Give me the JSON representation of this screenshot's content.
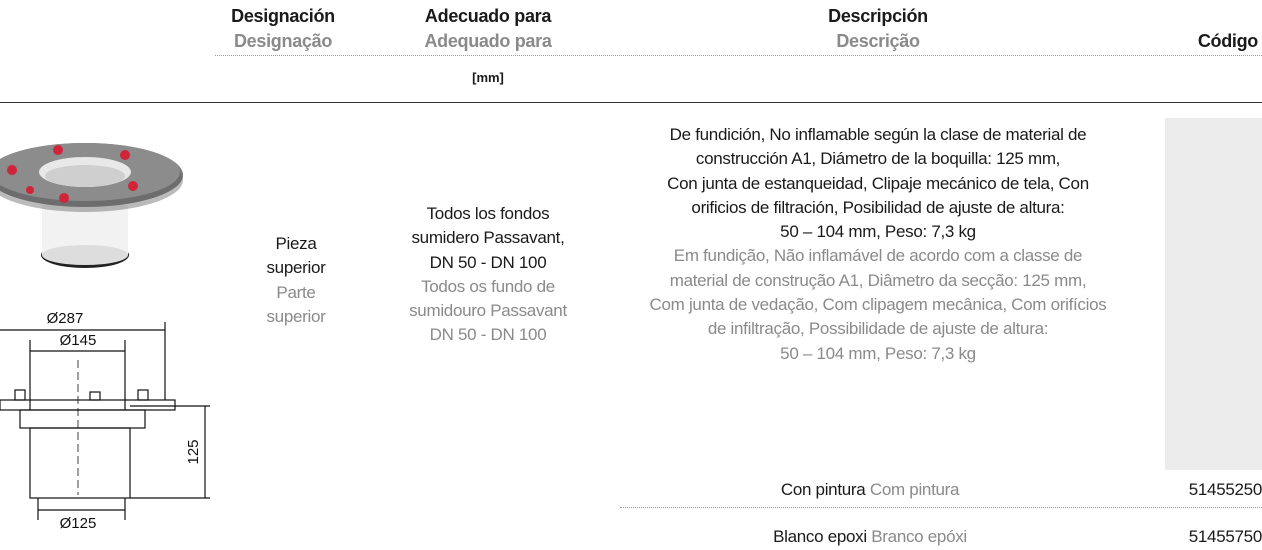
{
  "header": {
    "designation": {
      "es": "Designación",
      "pt": "Designação"
    },
    "suitable": {
      "es": "Adecuado para",
      "pt": "Adequado para",
      "unit": "[mm]"
    },
    "description": {
      "es": "Descripción",
      "pt": "Descrição"
    },
    "code": "Código"
  },
  "product": {
    "drawing": {
      "outer": "Ø287",
      "inner": "Ø145",
      "height": "125",
      "nozzle": "Ø125"
    },
    "designation": {
      "es": "Pieza superior",
      "pt": "Parte superior"
    },
    "suitable": {
      "es": [
        "Todos los fondos",
        "sumidero Passavant,",
        "DN 50 - DN 100"
      ],
      "pt": [
        "Todos os fundo de",
        "sumidouro Passavant",
        "DN 50 - DN 100"
      ]
    },
    "description": {
      "es": [
        "De fundición, No inflamable según la clase de material de",
        "construcción A1, Diámetro de la boquilla: 125  mm,",
        "Con junta de estanqueidad, Clipaje mecánico de tela, Con",
        "orificios de filtración, Posibilidad de ajuste de altura:",
        "50 – 104  mm, Peso: 7,3 kg"
      ],
      "pt": [
        "Em fundição, Não inflamável de acordo com a classe de",
        "material de construção A1, Diâmetro da secção: 125 mm,",
        "Com junta de vedação, Com clipagem mecânica, Com orifícios",
        "de infiltração, Possibilidade de ajuste de altura:",
        "50 – 104 mm, Peso: 7,3 kg"
      ]
    },
    "variants": [
      {
        "es": "Con pintura",
        "pt": "Com pintura",
        "code": "51455250"
      },
      {
        "es": "Blanco epoxi",
        "pt": "Branco epóxi",
        "code": "51455750"
      }
    ]
  }
}
